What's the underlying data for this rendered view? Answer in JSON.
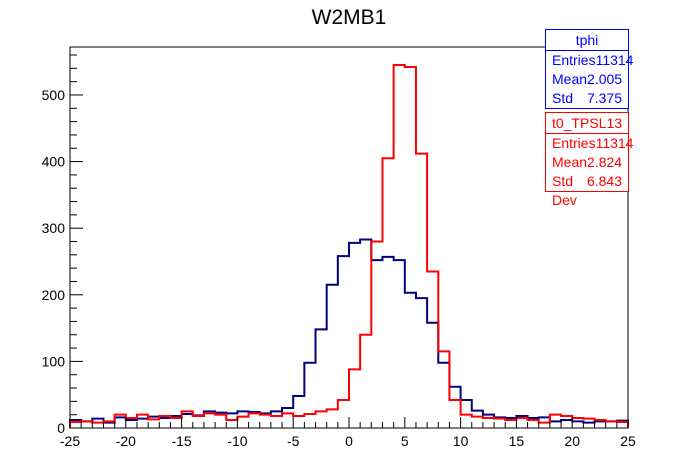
{
  "chart_data": {
    "type": "histogram",
    "title": "W2MB1",
    "xlim": [
      -25,
      25
    ],
    "ylim": [
      0,
      572
    ],
    "bin_width": 1,
    "x_ticks": [
      -25,
      -20,
      -15,
      -10,
      -5,
      0,
      5,
      10,
      15,
      20,
      25
    ],
    "y_ticks": [
      0,
      100,
      200,
      300,
      400,
      500
    ],
    "series": [
      {
        "name": "tphi",
        "color": "#000080",
        "values": [
          12,
          10,
          14,
          8,
          16,
          12,
          14,
          17,
          15,
          18,
          21,
          19,
          25,
          23,
          22,
          25,
          24,
          22,
          25,
          30,
          48,
          98,
          148,
          215,
          258,
          278,
          283,
          252,
          257,
          252,
          203,
          195,
          158,
          98,
          62,
          42,
          26,
          20,
          16,
          15,
          18,
          15,
          16,
          10,
          12,
          10,
          8,
          10,
          10,
          11
        ]
      },
      {
        "name": "t0_TPSL13",
        "color": "#ff0000",
        "values": [
          9,
          10,
          8,
          10,
          20,
          15,
          20,
          13,
          18,
          15,
          25,
          18,
          22,
          20,
          12,
          17,
          22,
          20,
          18,
          22,
          18,
          21,
          25,
          28,
          42,
          88,
          140,
          280,
          405,
          545,
          542,
          412,
          235,
          115,
          42,
          20,
          17,
          15,
          14,
          12,
          15,
          12,
          8,
          20,
          18,
          15,
          14,
          12,
          10,
          9
        ]
      }
    ]
  },
  "stats": [
    {
      "name": "tphi",
      "entries_label": "Entries",
      "entries": "11314",
      "mean_label": "Mean",
      "mean": "2.005",
      "std_label": "Std Dev",
      "std": "7.375"
    },
    {
      "name": "t0_TPSL13",
      "entries_label": "Entries",
      "entries": "11314",
      "mean_label": "Mean",
      "mean": "2.824",
      "std_label": "Std Dev",
      "std": "6.843"
    }
  ]
}
